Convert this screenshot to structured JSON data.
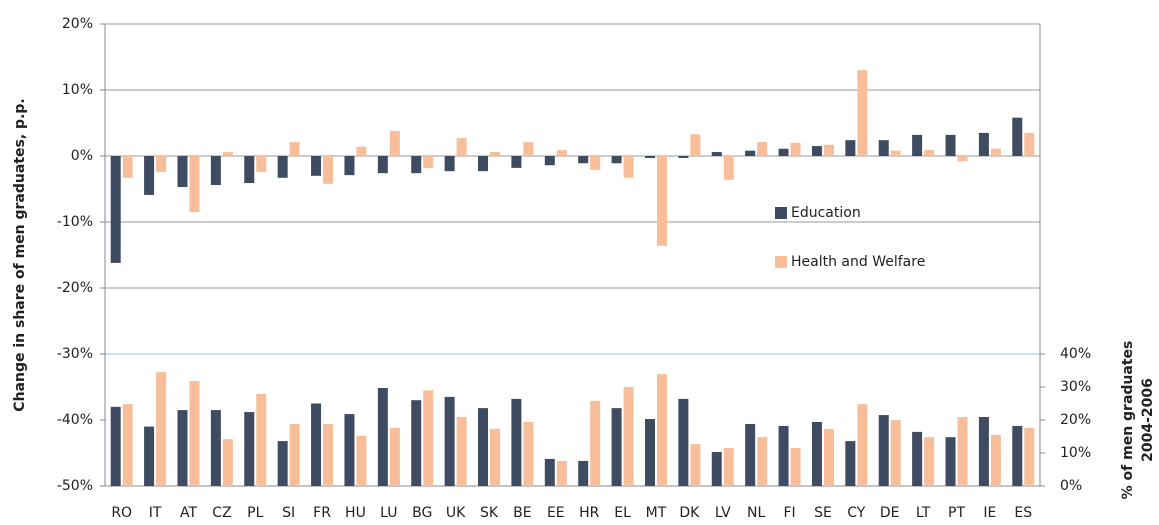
{
  "chart_data": {
    "type": "bar",
    "y_label": "Change in share of men graduates, p.p.",
    "y2_label": [
      "% of men graduates",
      "2004-2006"
    ],
    "categories": [
      "RO",
      "IT",
      "AT",
      "CZ",
      "PL",
      "SI",
      "FR",
      "HU",
      "LU",
      "BG",
      "UK",
      "SK",
      "BE",
      "EE",
      "HR",
      "EL",
      "MT",
      "DK",
      "LV",
      "NL",
      "FI",
      "SE",
      "CY",
      "DE",
      "LT",
      "PT",
      "IE",
      "ES"
    ],
    "series": [
      {
        "name": "Education",
        "color": "#3e4b60",
        "values": [
          -16.2,
          -5.9,
          -4.7,
          -4.4,
          -4.1,
          -3.3,
          -3.0,
          -2.9,
          -2.6,
          -2.6,
          -2.3,
          -2.3,
          -1.8,
          -1.4,
          -1.1,
          -1.1,
          -0.3,
          -0.3,
          0.6,
          0.8,
          1.1,
          1.5,
          2.4,
          2.4,
          3.2,
          3.2,
          3.5,
          5.8
        ],
        "values_y2": [
          24,
          18,
          23,
          23,
          22.4,
          13.6,
          25,
          21.8,
          29.7,
          26,
          27,
          23.6,
          26.4,
          8.2,
          7.6,
          23.6,
          20.3,
          26.4,
          10.3,
          18.8,
          18.2,
          19.4,
          13.6,
          21.5,
          16.4,
          14.8,
          20.9,
          18.2
        ]
      },
      {
        "name": "Health and Welfare",
        "color": "#f7be99",
        "values": [
          -3.3,
          -2.4,
          -8.5,
          0.6,
          -2.4,
          2.1,
          -4.2,
          1.4,
          3.8,
          -1.8,
          2.7,
          0.6,
          2.1,
          0.9,
          -2.1,
          -3.3,
          -13.6,
          3.3,
          -3.6,
          2.1,
          2.0,
          1.7,
          13.0,
          0.8,
          0.9,
          -0.8,
          1.1,
          3.5
        ],
        "values_y2": [
          24.8,
          34.5,
          31.8,
          14.2,
          27.9,
          18.8,
          18.8,
          15.2,
          17.6,
          29,
          20.9,
          17.3,
          19.4,
          7.6,
          25.8,
          30,
          33.9,
          12.7,
          11.5,
          14.8,
          11.5,
          17.3,
          24.8,
          20,
          14.8,
          20.9,
          15.5,
          17.6
        ]
      }
    ],
    "ylim": [
      -50,
      20
    ],
    "yticks": [
      {
        "value": -50,
        "label": "-50%"
      },
      {
        "value": -40,
        "label": "-40%"
      },
      {
        "value": -30,
        "label": "-30%"
      },
      {
        "value": -20,
        "label": "-20%"
      },
      {
        "value": -10,
        "label": "-10%"
      },
      {
        "value": 0,
        "label": "0%"
      },
      {
        "value": 10,
        "label": "10%"
      },
      {
        "value": 20,
        "label": "20%"
      }
    ],
    "y2lim": [
      0,
      140
    ],
    "y2ticks": [
      {
        "value": 0,
        "label": "0%"
      },
      {
        "value": 10,
        "label": "10%"
      },
      {
        "value": 20,
        "label": "20%"
      },
      {
        "value": 30,
        "label": "30%"
      },
      {
        "value": 40,
        "label": "40%"
      }
    ],
    "grid": true
  }
}
